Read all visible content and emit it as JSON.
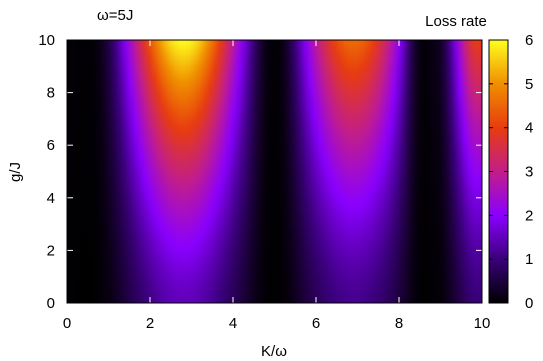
{
  "chart_data": {
    "type": "heatmap",
    "annotation": "ω=5J",
    "xlabel": "K/ω",
    "ylabel": "g/J",
    "xlim": [
      0,
      10
    ],
    "ylim": [
      0,
      10
    ],
    "x_ticks": [
      0,
      2,
      4,
      6,
      8,
      10
    ],
    "y_ticks": [
      0,
      2,
      4,
      6,
      8,
      10
    ],
    "colorbar": {
      "label": "Loss rate",
      "range": [
        0,
        6
      ],
      "ticks": [
        0,
        1,
        2,
        3,
        4,
        5,
        6
      ],
      "colormap": [
        "#000000",
        "#3a007a",
        "#8a00ff",
        "#c21e8a",
        "#e83c10",
        "#f08f00",
        "#ffff20"
      ]
    },
    "lobes": [
      {
        "x_center": 2.8,
        "x_sigma": 1.0,
        "peak_at_top": 6.0
      },
      {
        "x_center": 6.9,
        "x_sigma": 0.95,
        "peak_at_top": 4.6
      },
      {
        "x_center": 9.9,
        "x_sigma": 0.45,
        "peak_at_top": 4.0
      }
    ],
    "dark_regions": [
      {
        "x_center": 0.5,
        "x_sigma": 0.45
      },
      {
        "x_center": 5.0,
        "x_sigma": 0.35
      },
      {
        "x_center": 8.6,
        "x_sigma": 0.3
      }
    ]
  }
}
